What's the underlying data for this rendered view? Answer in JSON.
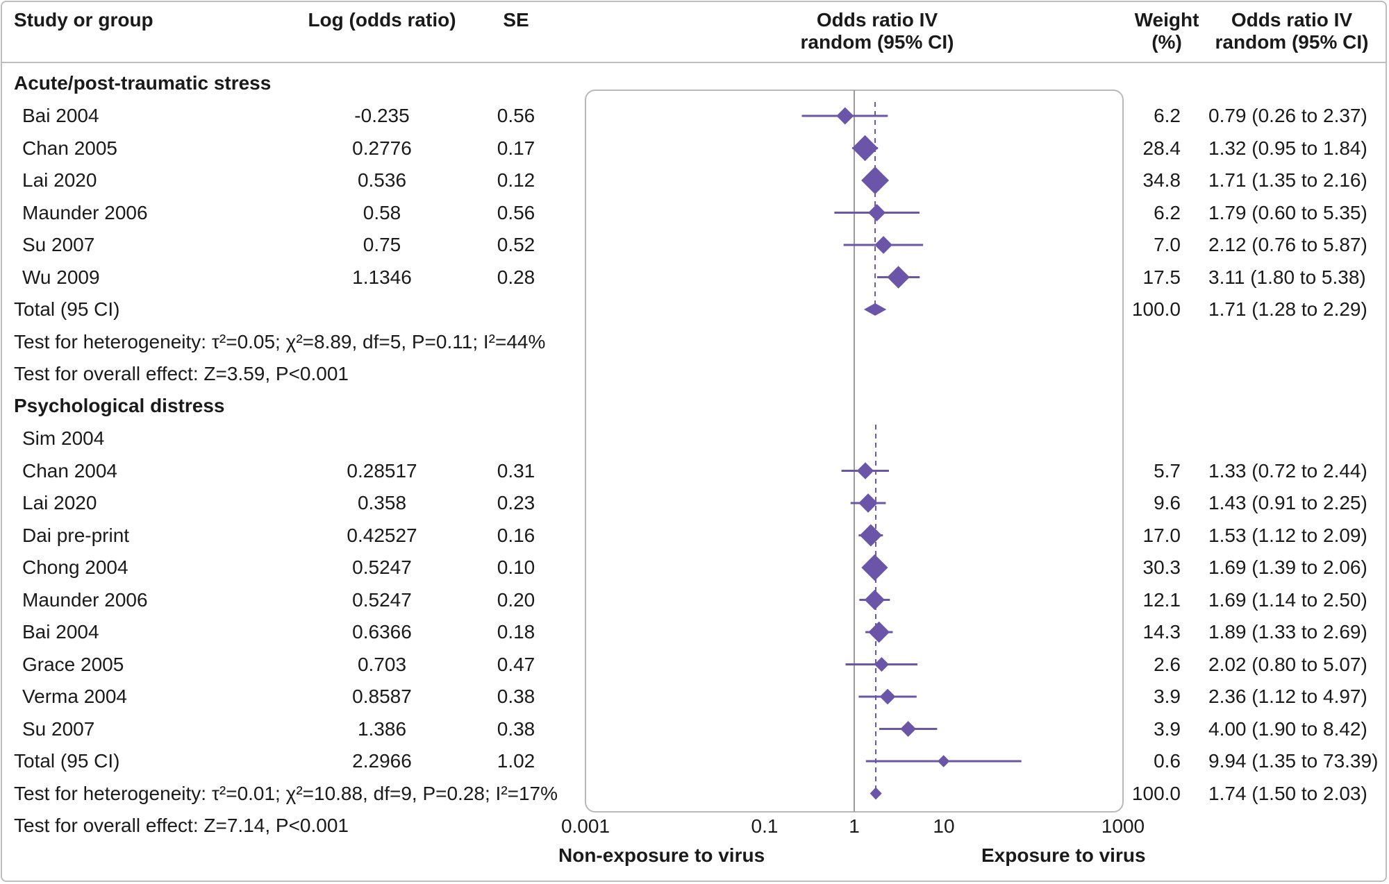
{
  "header": {
    "study": "Study or group",
    "log": "Log (odds ratio)",
    "se": "SE",
    "or_line1": "Odds ratio IV",
    "or_line2": "random (95% CI)",
    "weight_line1": "Weight",
    "weight_line2": "(%)",
    "orci_line1": "Odds ratio IV",
    "orci_line2": "random (95% CI)"
  },
  "chart_data": {
    "type": "forest",
    "x_scale": "log",
    "xlim": [
      0.001,
      1000
    ],
    "x_ticks": [
      "0.001",
      "0.1",
      "1",
      "10",
      "1000"
    ],
    "xlabel_left": "Non-exposure to virus",
    "xlabel_right": "Exposure to virus",
    "groups": [
      {
        "name": "Acute/post-traumatic stress",
        "studies": [
          {
            "study": "Bai 2004",
            "log_or": "-0.235",
            "se": "0.56",
            "weight": "6.2",
            "or_ci": "0.79 (0.26 to 2.37)",
            "or": 0.79,
            "lo": 0.26,
            "hi": 2.37
          },
          {
            "study": "Chan 2005",
            "log_or": "0.2776",
            "se": "0.17",
            "weight": "28.4",
            "or_ci": "1.32 (0.95 to 1.84)",
            "or": 1.32,
            "lo": 0.95,
            "hi": 1.84
          },
          {
            "study": "Lai 2020",
            "log_or": "0.536",
            "se": "0.12",
            "weight": "34.8",
            "or_ci": "1.71 (1.35 to 2.16)",
            "or": 1.71,
            "lo": 1.35,
            "hi": 2.16
          },
          {
            "study": "Maunder 2006",
            "log_or": "0.58",
            "se": "0.56",
            "weight": "6.2",
            "or_ci": "1.79 (0.60 to 5.35)",
            "or": 1.79,
            "lo": 0.6,
            "hi": 5.35
          },
          {
            "study": "Su 2007",
            "log_or": "0.75",
            "se": "0.52",
            "weight": "7.0",
            "or_ci": "2.12 (0.76 to 5.87)",
            "or": 2.12,
            "lo": 0.76,
            "hi": 5.87
          },
          {
            "study": "Wu 2009",
            "log_or": "1.1346",
            "se": "0.28",
            "weight": "17.5",
            "or_ci": "3.11 (1.80 to 5.38)",
            "or": 3.11,
            "lo": 1.8,
            "hi": 5.38
          }
        ],
        "total": {
          "label": "Total (95 CI)",
          "weight": "100.0",
          "or_ci": "1.71 (1.28 to 2.29)",
          "or": 1.71,
          "lo": 1.28,
          "hi": 2.29
        },
        "heterogeneity": "Test for heterogeneity: τ²=0.05; χ²=8.89, df=5, P=0.11; I²=44%",
        "overall": "Test for overall effect: Z=3.59, P<0.001"
      },
      {
        "name": "Psychological distress",
        "subheading": "Sim 2004",
        "studies": [
          {
            "study": "Chan 2004",
            "log_or": "0.28517",
            "se": "0.31",
            "weight": "5.7",
            "or_ci": "1.33 (0.72 to 2.44)",
            "or": 1.33,
            "lo": 0.72,
            "hi": 2.44
          },
          {
            "study": "Lai 2020",
            "log_or": "0.358",
            "se": "0.23",
            "weight": "9.6",
            "or_ci": "1.43 (0.91 to 2.25)",
            "or": 1.43,
            "lo": 0.91,
            "hi": 2.25
          },
          {
            "study": "Dai pre-print",
            "log_or": "0.42527",
            "se": "0.16",
            "weight": "17.0",
            "or_ci": "1.53 (1.12 to 2.09)",
            "or": 1.53,
            "lo": 1.12,
            "hi": 2.09
          },
          {
            "study": "Chong 2004",
            "log_or": "0.5247",
            "se": "0.10",
            "weight": "30.3",
            "or_ci": "1.69 (1.39 to 2.06)",
            "or": 1.69,
            "lo": 1.39,
            "hi": 2.06
          },
          {
            "study": "Maunder 2006",
            "log_or": "0.5247",
            "se": "0.20",
            "weight": "12.1",
            "or_ci": "1.69 (1.14 to 2.50)",
            "or": 1.69,
            "lo": 1.14,
            "hi": 2.5
          },
          {
            "study": "Bai 2004",
            "log_or": "0.6366",
            "se": "0.18",
            "weight": "14.3",
            "or_ci": "1.89 (1.33 to 2.69)",
            "or": 1.89,
            "lo": 1.33,
            "hi": 2.69
          },
          {
            "study": "Grace 2005",
            "log_or": "0.703",
            "se": "0.47",
            "weight": "2.6",
            "or_ci": "2.02 (0.80 to 5.07)",
            "or": 2.02,
            "lo": 0.8,
            "hi": 5.07
          },
          {
            "study": "Verma 2004",
            "log_or": "0.8587",
            "se": "0.38",
            "weight": "3.9",
            "or_ci": "2.36 (1.12 to 4.97)",
            "or": 2.36,
            "lo": 1.12,
            "hi": 4.97
          },
          {
            "study": "Su 2007",
            "log_or": "1.386",
            "se": "0.38",
            "weight": "3.9",
            "or_ci": "4.00 (1.90 to 8.42)",
            "or": 4.0,
            "lo": 1.9,
            "hi": 8.42
          }
        ],
        "total": {
          "label": "Total (95 CI)",
          "log_or": "2.2966",
          "se": "1.02",
          "weight": "0.6",
          "or_ci": "9.94 (1.35 to 73.39)",
          "or": 9.94,
          "lo": 1.35,
          "hi": 73.39
        },
        "heterogeneity": "Test for heterogeneity: τ²=0.01; χ²=10.88, df=9, P=0.28; I²=17%",
        "heterogeneity_weight": "100.0",
        "heterogeneity_or_ci": "1.74 (1.50 to 2.03)",
        "pooled": {
          "or": 1.74,
          "lo": 1.5,
          "hi": 2.03
        },
        "overall": "Test for overall effect: Z=7.14, P<0.001"
      }
    ],
    "colors": {
      "marker": "#6a55a8",
      "frame": "#b8b8b8",
      "null_line": "#9a9a9a"
    }
  }
}
